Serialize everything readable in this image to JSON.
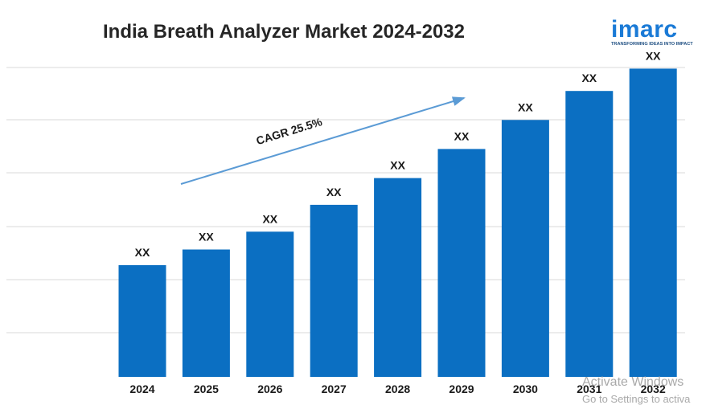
{
  "title": "India Breath Analyzer Market 2024-2032",
  "logo": {
    "name": "imarc",
    "tagline": "TRANSFORMING IDEAS INTO IMPACT"
  },
  "watermark": {
    "line1": "Activate Windows",
    "line2": "Go to Settings to activa"
  },
  "colors": {
    "bar": "#0b6fc2",
    "arrow": "#5b9bd5",
    "grid": "#d9d9d9",
    "text": "#1a1a1a"
  },
  "chart_data": {
    "type": "bar",
    "title": "India Breath Analyzer Market 2024-2032",
    "categories": [
      "2024",
      "2025",
      "2026",
      "2027",
      "2028",
      "2029",
      "2030",
      "2031",
      "2032"
    ],
    "values": [
      1.0,
      1.14,
      1.3,
      1.54,
      1.78,
      2.04,
      2.3,
      2.56,
      2.76
    ],
    "data_labels": [
      "XX",
      "XX",
      "XX",
      "XX",
      "XX",
      "XX",
      "XX",
      "XX",
      "XX"
    ],
    "ylim": [
      0,
      3
    ],
    "grid": true,
    "legend": "none",
    "annotation": {
      "text": "CAGR 25.5%",
      "arrow_from_category": "2025",
      "arrow_to_category": "2029"
    }
  }
}
